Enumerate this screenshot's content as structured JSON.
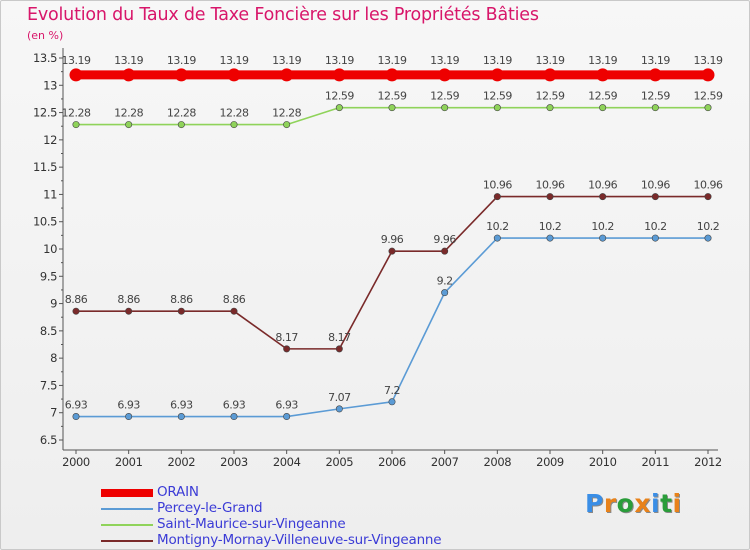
{
  "header": {
    "title": "Evolution du Taux de Taxe Foncière sur les Propriétés Bâties",
    "unit": "(en %)"
  },
  "colors": {
    "title": "#d8166a",
    "axis": "#555555",
    "legend_text": "#3b3bd6"
  },
  "brand": {
    "letters": [
      "P",
      "r",
      "o",
      "x",
      "i",
      "t",
      "i"
    ],
    "colors": [
      "#3a8ee6",
      "#e8821a",
      "#2a9d3a",
      "#e8821a",
      "#3a8ee6",
      "#2a9d3a",
      "#e8821a"
    ]
  },
  "chart_data": {
    "type": "line",
    "x": [
      "2000",
      "2001",
      "2002",
      "2003",
      "2004",
      "2005",
      "2006",
      "2007",
      "2008",
      "2009",
      "2010",
      "2011",
      "2012"
    ],
    "yticks": [
      "6.5",
      "7",
      "7.5",
      "8",
      "8.5",
      "9",
      "9.5",
      "10",
      "10.5",
      "11",
      "11.5",
      "12",
      "12.5",
      "13",
      "13.5"
    ],
    "ylim": [
      6.5,
      13.5
    ],
    "grid": false,
    "legend_position": "bottom-left",
    "series": [
      {
        "name": "ORAIN",
        "color": "#ee0000",
        "values": [
          13.19,
          13.19,
          13.19,
          13.19,
          13.19,
          13.19,
          13.19,
          13.19,
          13.19,
          13.19,
          13.19,
          13.19,
          13.19
        ],
        "labels": [
          "13.19",
          "13.19",
          "13.19",
          "13.19",
          "13.19",
          "13.19",
          "13.19",
          "13.19",
          "13.19",
          "13.19",
          "13.19",
          "13.19",
          "13.19"
        ],
        "thick": true
      },
      {
        "name": "Percey-le-Grand",
        "color": "#5b9bd5",
        "values": [
          6.93,
          6.93,
          6.93,
          6.93,
          6.93,
          7.07,
          7.2,
          9.2,
          10.2,
          10.2,
          10.2,
          10.2,
          10.2
        ],
        "labels": [
          "6.93",
          "6.93",
          "6.93",
          "6.93",
          "6.93",
          "7.07",
          "7.2",
          "9.2",
          "10.2",
          "10.2",
          "10.2",
          "10.2",
          "10.2"
        ],
        "thick": false
      },
      {
        "name": "Saint-Maurice-sur-Vingeanne",
        "color": "#8fd35a",
        "values": [
          12.28,
          12.28,
          12.28,
          12.28,
          12.28,
          12.59,
          12.59,
          12.59,
          12.59,
          12.59,
          12.59,
          12.59,
          12.59
        ],
        "labels": [
          "12.28",
          "12.28",
          "12.28",
          "12.28",
          "12.28",
          "12.59",
          "12.59",
          "12.59",
          "12.59",
          "12.59",
          "12.59",
          "12.59",
          "12.59"
        ],
        "thick": false
      },
      {
        "name": "Montigny-Mornay-Villeneuve-sur-Vingeanne",
        "color": "#7a2a2a",
        "values": [
          8.86,
          8.86,
          8.86,
          8.86,
          8.17,
          8.17,
          9.96,
          9.96,
          10.96,
          10.96,
          10.96,
          10.96,
          10.96
        ],
        "labels": [
          "8.86",
          "8.86",
          "8.86",
          "8.86",
          "8.17",
          "8.17",
          "9.96",
          "9.96",
          "10.96",
          "10.96",
          "10.96",
          "10.96",
          "10.96"
        ],
        "thick": false
      }
    ]
  }
}
